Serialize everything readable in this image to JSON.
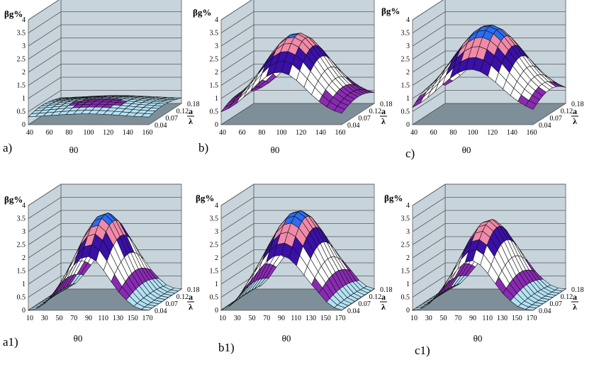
{
  "figure": {
    "background": "#ffffff"
  },
  "colors": {
    "wall": "#c8d4dc",
    "wall_line": "#5a5a5a",
    "floor": "#7e8f99",
    "grid": "#111111",
    "bands": [
      "#b3e2f4",
      "#8a2ab4",
      "#ffffff",
      "#ffffff",
      "#3a10a8",
      "#f08aa8",
      "#2c6cf0",
      "#c4eaf8"
    ]
  },
  "chart_data": [
    {
      "panel_label": "a)",
      "type": "surface3d",
      "ylabel": "βg%",
      "xlabel": "θ0",
      "zlabel_top": "a",
      "zlabel_bottom": "λ",
      "ylim": [
        0,
        4
      ],
      "y_ticks": [
        "0",
        "0.5",
        "1",
        "1.5",
        "2",
        "2.5",
        "3",
        "3.5",
        "4"
      ],
      "x_ticks": [
        "40",
        "60",
        "80",
        "100",
        "120",
        "140",
        "160"
      ],
      "x_range": [
        40,
        165
      ],
      "depth_ticks": [
        "0.18",
        "0.12",
        "0.07",
        "0.04"
      ],
      "surface": {
        "peak": 0.55,
        "center_theta": 100,
        "sigma": 50,
        "min": 0.35,
        "edge_trim": 0.0,
        "rise": 0.0
      }
    },
    {
      "panel_label": "b)",
      "type": "surface3d",
      "ylabel": "βg%",
      "xlabel": "θ0",
      "zlabel_top": "a",
      "zlabel_bottom": "λ",
      "ylim": [
        0,
        4
      ],
      "y_ticks": [
        "0",
        "0.5",
        "1",
        "1.5",
        "2",
        "2.5",
        "3",
        "3.5",
        "4"
      ],
      "x_ticks": [
        "40",
        "60",
        "80",
        "100",
        "120",
        "140",
        "160"
      ],
      "x_range": [
        40,
        165
      ],
      "depth_ticks": [
        "0.18",
        "0.12",
        "0.07",
        "0.04"
      ],
      "surface": {
        "peak": 3.55,
        "center_theta": 100,
        "sigma": 40,
        "min": 0.55,
        "edge_trim": 0.0,
        "rise": 0.25
      }
    },
    {
      "panel_label": "c)",
      "type": "surface3d",
      "ylabel": "βg%",
      "xlabel": "θ0",
      "zlabel_top": "a",
      "zlabel_bottom": "λ",
      "ylim": [
        0,
        4
      ],
      "y_ticks": [
        "0",
        "0.5",
        "1",
        "1.5",
        "2",
        "2.5",
        "3",
        "3.5",
        "4"
      ],
      "x_ticks": [
        "40",
        "60",
        "80",
        "100",
        "120",
        "140",
        "160"
      ],
      "x_range": [
        40,
        165
      ],
      "depth_ticks": [
        "0.18",
        "0.12",
        "0.07",
        "0.04"
      ],
      "surface": {
        "peak": 4.0,
        "center_theta": 100,
        "sigma": 45,
        "min": 0.7,
        "edge_trim": 0.0,
        "rise": 0.3
      }
    },
    {
      "panel_label": "a1)",
      "type": "surface3d",
      "ylabel": "βg%",
      "xlabel": "θ0",
      "zlabel_top": "a",
      "zlabel_bottom": "λ",
      "ylim": [
        0,
        4
      ],
      "y_ticks": [
        "0",
        "0.5",
        "1",
        "1.5",
        "2",
        "2.5",
        "3",
        "3.5",
        "4"
      ],
      "x_ticks": [
        "10",
        "30",
        "50",
        "70",
        "90",
        "110",
        "130",
        "150",
        "170"
      ],
      "x_range": [
        10,
        175
      ],
      "depth_ticks": [
        "0.18",
        "0.12",
        "0.07",
        "0.04"
      ],
      "surface": {
        "peak": 3.9,
        "center_theta": 90,
        "sigma": 42,
        "min": 0.0,
        "edge_trim": 0.6,
        "rise": 0.3
      }
    },
    {
      "panel_label": "b1)",
      "type": "surface3d",
      "ylabel": "βg%",
      "xlabel": "θ0",
      "zlabel_top": "a",
      "zlabel_bottom": "λ",
      "ylim": [
        0,
        4
      ],
      "y_ticks": [
        "0",
        "0.5",
        "1",
        "1.5",
        "2",
        "2.5",
        "3",
        "3.5",
        "4"
      ],
      "x_ticks": [
        "10",
        "30",
        "50",
        "70",
        "90",
        "110",
        "130",
        "150",
        "170"
      ],
      "x_range": [
        10,
        175
      ],
      "depth_ticks": [
        "0.18",
        "0.12",
        "0.07",
        "0.04"
      ],
      "surface": {
        "peak": 4.0,
        "center_theta": 90,
        "sigma": 50,
        "min": 0.0,
        "edge_trim": 0.6,
        "rise": 0.3
      }
    },
    {
      "panel_label": "c1)",
      "type": "surface3d",
      "ylabel": "βg%",
      "xlabel": "θ0",
      "zlabel_top": "a",
      "zlabel_bottom": "λ",
      "ylim": [
        0,
        4
      ],
      "y_ticks": [
        "0",
        "0.5",
        "1",
        "1.5",
        "2",
        "2.5",
        "3",
        "3.5",
        "4"
      ],
      "x_ticks": [
        "10",
        "30",
        "50",
        "70",
        "90",
        "110",
        "130",
        "150",
        "170"
      ],
      "x_range": [
        10,
        175
      ],
      "depth_ticks": [
        "0.18",
        "0.12",
        "0.07",
        "0.04"
      ],
      "surface": {
        "peak": 3.6,
        "center_theta": 90,
        "sigma": 42,
        "min": 0.0,
        "edge_trim": 0.6,
        "rise": 0.3
      }
    }
  ]
}
